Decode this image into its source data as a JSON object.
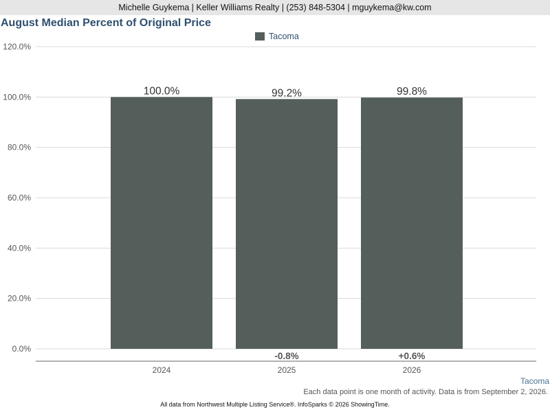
{
  "header": {
    "contact": "Michelle Guykema | Keller Williams Realty | (253) 848-5304 | mguykema@kw.com"
  },
  "chart_data": {
    "type": "bar",
    "title": "August Median Percent of Original Price",
    "categories": [
      "2024",
      "2025",
      "2026"
    ],
    "series": [
      {
        "name": "Tacoma",
        "color": "#545e5b",
        "values": [
          100.0,
          99.2,
          99.8
        ],
        "value_labels": [
          "100.0%",
          "99.2%",
          "99.8%"
        ]
      }
    ],
    "changes": [
      "",
      "-0.8%",
      "+0.6%"
    ],
    "y_ticks": [
      "0.0%",
      "20.0%",
      "40.0%",
      "60.0%",
      "80.0%",
      "100.0%",
      "120.0%"
    ],
    "ylim": [
      0,
      120
    ],
    "grid": true,
    "legend_position": "top-center"
  },
  "area_label": "Tacoma",
  "footnote": "Each data point is one month of activity. Data is from September 2, 2026.",
  "source": "All data from Northwest Multiple Listing Service®. InfoSparks © 2026 ShowingTime."
}
